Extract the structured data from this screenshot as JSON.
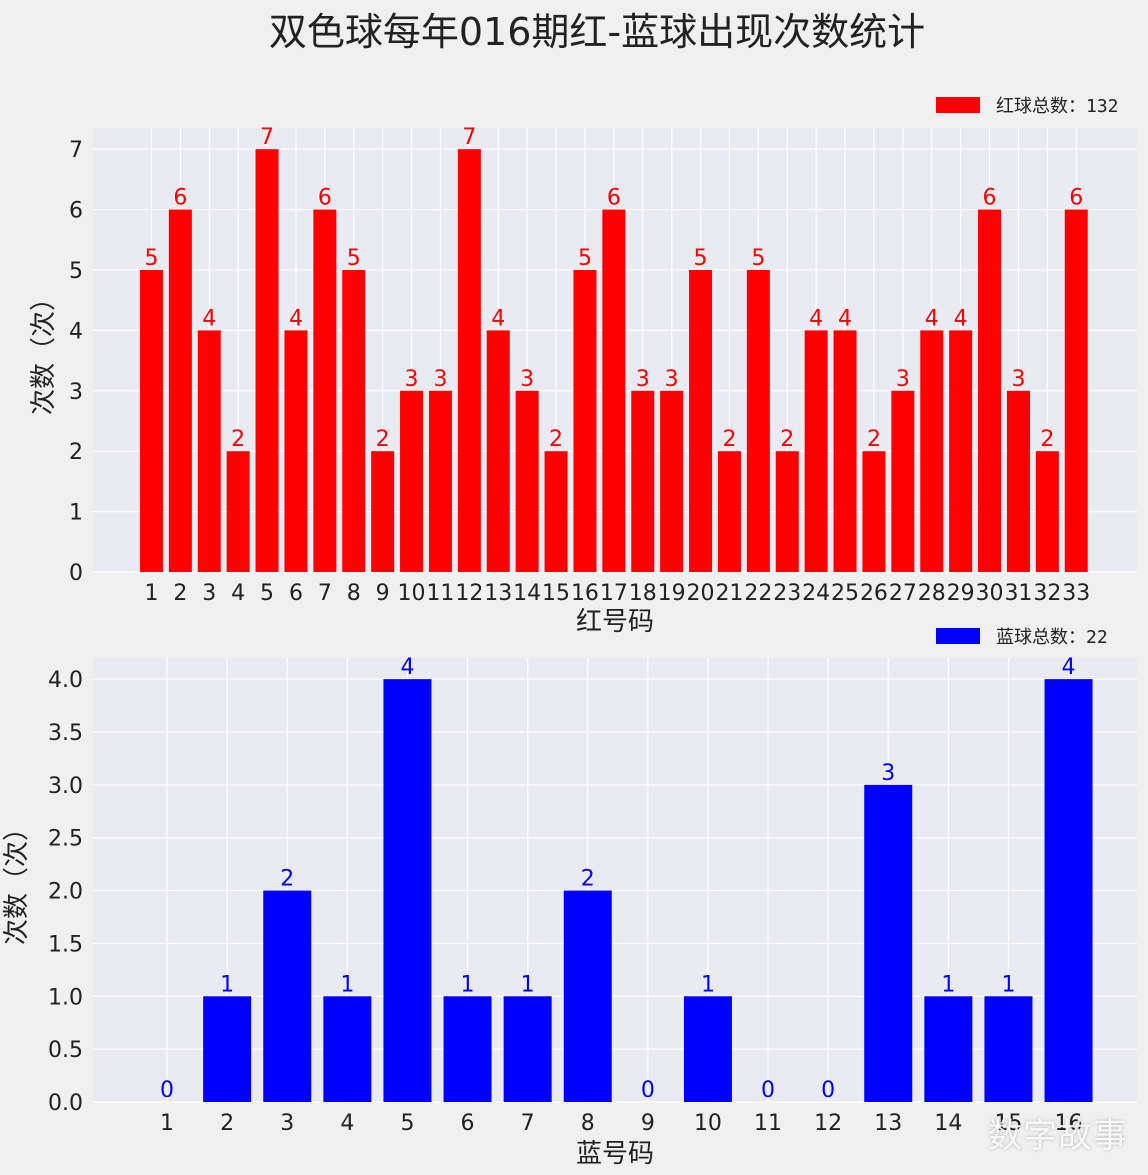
{
  "title": "双色球每年016期红-蓝球出现次数统计",
  "watermark": "数字故事",
  "chart_data": [
    {
      "type": "bar",
      "color": "#ff0000",
      "legend": "红球总数：132",
      "legend_position": "top-right",
      "xlabel": "红号码",
      "ylabel": "次数（次）",
      "ylim": [
        0,
        7.35
      ],
      "yticks": [
        "0",
        "1",
        "2",
        "3",
        "4",
        "5",
        "6",
        "7"
      ],
      "grid": true,
      "categories": [
        "1",
        "2",
        "3",
        "4",
        "5",
        "6",
        "7",
        "8",
        "9",
        "10",
        "11",
        "12",
        "13",
        "14",
        "15",
        "16",
        "17",
        "18",
        "19",
        "20",
        "21",
        "22",
        "23",
        "24",
        "25",
        "26",
        "27",
        "28",
        "29",
        "30",
        "31",
        "32",
        "33"
      ],
      "values": [
        5,
        6,
        4,
        2,
        7,
        4,
        6,
        5,
        2,
        3,
        3,
        7,
        4,
        3,
        2,
        5,
        6,
        3,
        3,
        5,
        2,
        5,
        2,
        4,
        4,
        2,
        3,
        4,
        4,
        6,
        3,
        2,
        6
      ]
    },
    {
      "type": "bar",
      "color": "#0000ff",
      "legend": "蓝球总数：22",
      "legend_position": "top-right",
      "xlabel": "蓝号码",
      "ylabel": "次数（次）",
      "ylim": [
        0,
        4.2
      ],
      "yticks": [
        "0.0",
        "0.5",
        "1.0",
        "1.5",
        "2.0",
        "2.5",
        "3.0",
        "3.5",
        "4.0"
      ],
      "grid": true,
      "categories": [
        "1",
        "2",
        "3",
        "4",
        "5",
        "6",
        "7",
        "8",
        "9",
        "10",
        "11",
        "12",
        "13",
        "14",
        "15",
        "16"
      ],
      "values": [
        0,
        1,
        2,
        1,
        4,
        1,
        1,
        2,
        0,
        1,
        0,
        0,
        3,
        1,
        1,
        4
      ]
    }
  ]
}
